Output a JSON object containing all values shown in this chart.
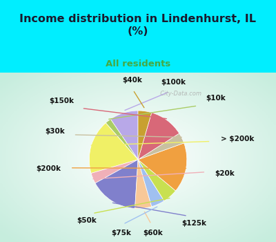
{
  "title": "Income distribution in Lindenhurst, IL\n(%)",
  "subtitle": "All residents",
  "labels": [
    "$100k",
    "$10k",
    "> $200k",
    "$20k",
    "$125k",
    "$60k",
    "$75k",
    "$50k",
    "$200k",
    "$30k",
    "$150k",
    "$40k"
  ],
  "sizes": [
    9.5,
    2.0,
    18.0,
    3.5,
    16.0,
    5.5,
    4.5,
    5.0,
    16.5,
    3.5,
    11.5,
    4.5
  ],
  "colors": [
    "#b8a8e8",
    "#aacc66",
    "#f0f066",
    "#f0b0b8",
    "#8080cc",
    "#f8c898",
    "#a0c0f0",
    "#c8e050",
    "#f0a040",
    "#c8c0a0",
    "#d86878",
    "#c8a030"
  ],
  "bg_color_top": "#00eeff",
  "title_color": "#1a1a2e",
  "subtitle_color": "#44aa44",
  "label_color": "#111111",
  "label_fontsize": 7.5,
  "startangle": 90,
  "watermark": "  City-Data.com"
}
